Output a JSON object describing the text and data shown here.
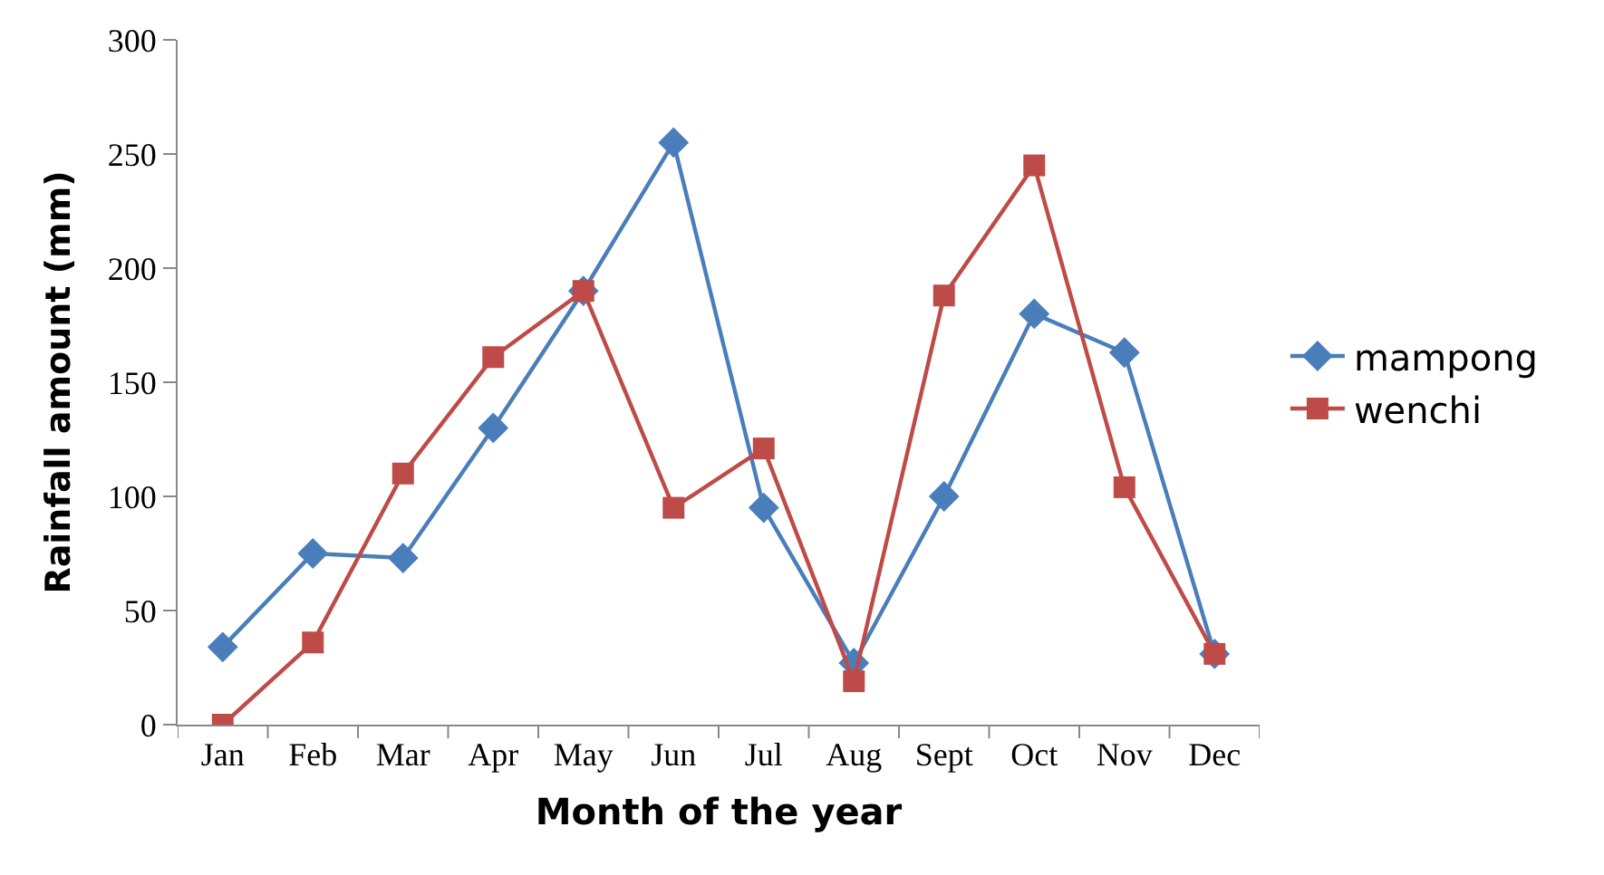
{
  "chart_data": {
    "type": "line",
    "xlabel": "Month of the year",
    "ylabel": "Rainfall amount (mm)",
    "categories": [
      "Jan",
      "Feb",
      "Mar",
      "Apr",
      "May",
      "Jun",
      "Jul",
      "Aug",
      "Sept",
      "Oct",
      "Nov",
      "Dec"
    ],
    "series": [
      {
        "name": "mampong",
        "color": "#4a7ebb",
        "marker": "diamond",
        "values": [
          34,
          75,
          73,
          130,
          190,
          255,
          95,
          27,
          100,
          180,
          163,
          31
        ]
      },
      {
        "name": "wenchi",
        "color": "#be4b48",
        "marker": "square",
        "values": [
          0,
          36,
          110,
          161,
          190,
          95,
          121,
          19,
          188,
          245,
          104,
          31
        ]
      }
    ],
    "ylim": [
      0,
      300
    ],
    "yticks": [
      0,
      50,
      100,
      150,
      200,
      250,
      300
    ],
    "legend": "right"
  }
}
